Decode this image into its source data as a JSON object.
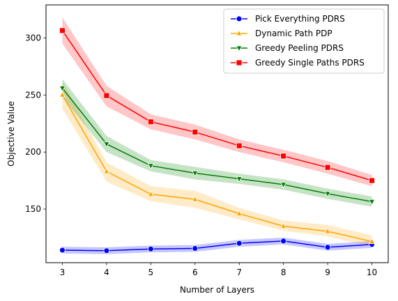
{
  "chart_data": {
    "type": "line",
    "title": "",
    "xlabel": "Number of Layers",
    "ylabel": "Objective Value",
    "x": [
      3,
      4,
      5,
      6,
      7,
      8,
      9,
      10
    ],
    "xlim": [
      2.63,
      10.37
    ],
    "ylim": [
      103,
      329
    ],
    "xticks": [
      3,
      4,
      5,
      6,
      7,
      8,
      9,
      10
    ],
    "yticks": [
      150,
      200,
      250,
      300
    ],
    "grid": false,
    "legend_position": "top-right",
    "series": [
      {
        "name": "Pick Everything PDRS",
        "color": "#0000ff",
        "marker": "circle",
        "values": [
          114,
          113.5,
          115,
          115.5,
          120,
          122,
          116.5,
          119
        ],
        "ci_low": [
          111,
          110.5,
          112,
          112.5,
          117,
          119,
          113.5,
          116
        ],
        "ci_high": [
          117,
          116.5,
          118,
          118.5,
          123,
          125,
          119.5,
          122
        ]
      },
      {
        "name": "Dynamic Path PDP",
        "color": "#ffa500",
        "marker": "triangle-up",
        "values": [
          250,
          183,
          163,
          158.5,
          146,
          135,
          130.5,
          121.5
        ],
        "ci_low": [
          238,
          174,
          157,
          151,
          141,
          131,
          126,
          117
        ],
        "ci_high": [
          262,
          191,
          170,
          166,
          151,
          140,
          136,
          127
        ]
      },
      {
        "name": "Greedy Peeling PDRS",
        "color": "#008000",
        "marker": "triangle-down",
        "values": [
          256,
          207,
          188,
          181.5,
          176.5,
          171.5,
          163.5,
          156.5
        ],
        "ci_low": [
          248,
          200,
          183,
          176,
          172,
          167,
          159,
          152
        ],
        "ci_high": [
          264,
          214,
          193,
          187,
          181,
          176,
          168,
          161
        ]
      },
      {
        "name": "Greedy Single Paths PDRS",
        "color": "#ff0000",
        "marker": "square",
        "values": [
          306.5,
          249.5,
          226.5,
          217.5,
          205.5,
          196.5,
          186.5,
          175
        ],
        "ci_low": [
          295,
          240,
          220,
          211,
          200,
          191,
          181,
          170
        ],
        "ci_high": [
          318,
          258,
          233,
          224,
          211,
          202,
          192,
          180
        ]
      }
    ]
  }
}
